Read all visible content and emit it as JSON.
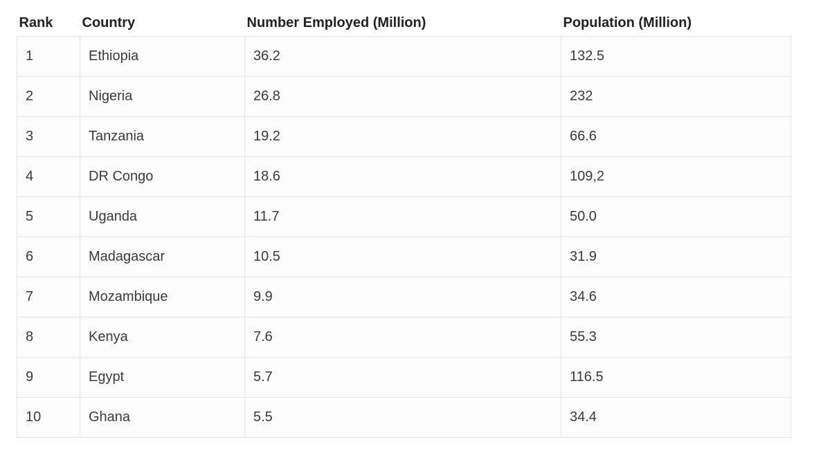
{
  "table": {
    "header": [
      "Rank",
      "Country",
      "Number Employed (Million)",
      "Population (Million)"
    ],
    "rows": [
      [
        "1",
        "Ethiopia",
        "36.2",
        "132.5"
      ],
      [
        "2",
        "Nigeria",
        "26.8",
        "232"
      ],
      [
        "3",
        "Tanzania",
        "19.2",
        "66.6"
      ],
      [
        "4",
        "DR Congo",
        "18.6",
        "109,2"
      ],
      [
        "5",
        "Uganda",
        "11.7",
        "50.0"
      ],
      [
        "6",
        "Madagascar",
        "10.5",
        "31.9"
      ],
      [
        "7",
        "Mozambique",
        "9.9",
        "34.6"
      ],
      [
        "8",
        "Kenya",
        "7.6",
        "55.3"
      ],
      [
        "9",
        "Egypt",
        "5.7",
        "116.5"
      ],
      [
        "10",
        "Ghana",
        "5.5",
        "34.4"
      ]
    ]
  }
}
